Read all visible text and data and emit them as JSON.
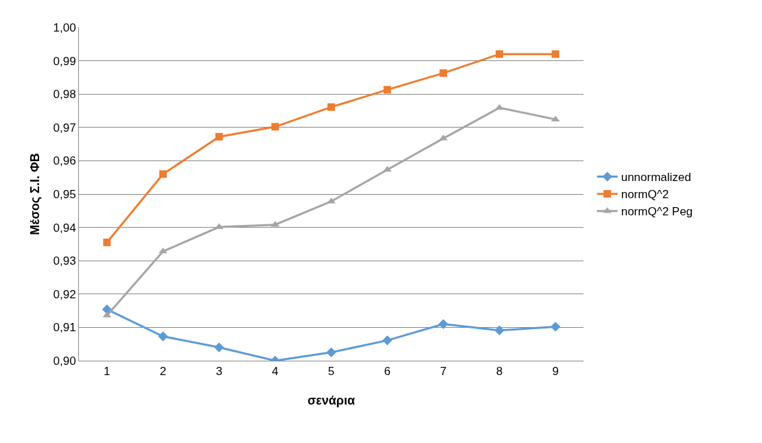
{
  "chart_data": {
    "type": "line",
    "xlabel": "σενάρια",
    "ylabel": "Μέσος Σ.Ι. ΦΒ",
    "categories": [
      "1",
      "2",
      "3",
      "4",
      "5",
      "6",
      "7",
      "8",
      "9"
    ],
    "series": [
      {
        "name": "unnormalized",
        "color": "#5b9bd5",
        "marker": "diamond",
        "values": [
          0.9154,
          0.9073,
          0.904,
          0.9,
          0.9025,
          0.9061,
          0.911,
          0.9091,
          0.9102
        ]
      },
      {
        "name": "normQ^2",
        "color": "#ed7d31",
        "marker": "square",
        "values": [
          0.9355,
          0.956,
          0.9672,
          0.9702,
          0.9761,
          0.9813,
          0.9863,
          0.992,
          0.992
        ]
      },
      {
        "name": "normQ^2 Peg",
        "color": "#a5a5a5",
        "marker": "triangle",
        "values": [
          0.9136,
          0.9328,
          0.9401,
          0.9408,
          0.9478,
          0.9573,
          0.9667,
          0.9759,
          0.9724
        ]
      }
    ],
    "ylim": [
      0.9,
      1.0
    ],
    "yticks": [
      {
        "value": 0.9,
        "label": "0,90"
      },
      {
        "value": 0.91,
        "label": "0,91"
      },
      {
        "value": 0.92,
        "label": "0,92"
      },
      {
        "value": 0.93,
        "label": "0,93"
      },
      {
        "value": 0.94,
        "label": "0,94"
      },
      {
        "value": 0.95,
        "label": "0,95"
      },
      {
        "value": 0.96,
        "label": "0,96"
      },
      {
        "value": 0.97,
        "label": "0,97"
      },
      {
        "value": 0.98,
        "label": "0,98"
      },
      {
        "value": 0.99,
        "label": "0,99"
      },
      {
        "value": 1.0,
        "label": "1,00"
      }
    ],
    "grid": "y",
    "legend": "right",
    "line_style": "solid"
  }
}
